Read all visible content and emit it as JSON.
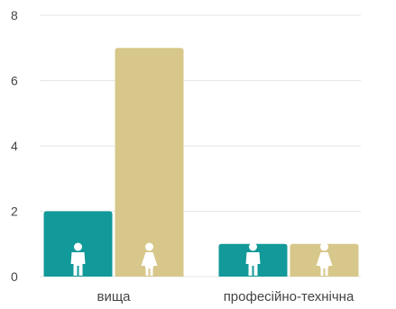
{
  "chart_data": {
    "type": "bar",
    "categories": [
      "вища",
      "професійно-технічна"
    ],
    "series": [
      {
        "values": [
          2,
          1
        ],
        "color": "#129999",
        "icon": "male-icon"
      },
      {
        "values": [
          7,
          1
        ],
        "color": "#d7c78a",
        "icon": "female-icon"
      }
    ],
    "title": "",
    "xlabel": "",
    "ylabel": "",
    "ylim": [
      0,
      8
    ],
    "yticks": [
      0,
      2,
      4,
      6,
      8
    ],
    "grid": true,
    "legend": "none"
  }
}
